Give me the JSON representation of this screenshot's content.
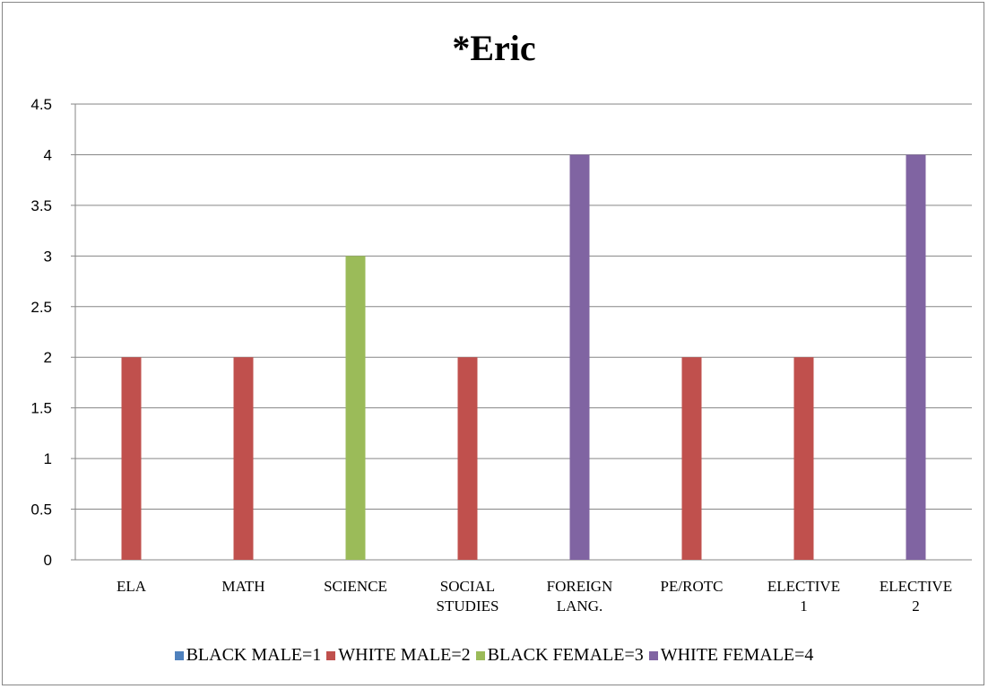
{
  "chart_data": {
    "type": "bar",
    "title": "*Eric",
    "categories": [
      [
        "ELA"
      ],
      [
        "MATH"
      ],
      [
        "SCIENCE"
      ],
      [
        "SOCIAL",
        "STUDIES"
      ],
      [
        "FOREIGN",
        "LANG."
      ],
      [
        "PE/ROTC"
      ],
      [
        "ELECTIVE",
        "1"
      ],
      [
        "ELECTIVE",
        "2"
      ]
    ],
    "series": [
      {
        "name": "BLACK MALE=1",
        "color": "#4F81BD",
        "values": [
          null,
          null,
          null,
          null,
          null,
          null,
          null,
          null
        ]
      },
      {
        "name": "WHITE MALE=2",
        "color": "#C0504D",
        "values": [
          2,
          2,
          null,
          2,
          null,
          2,
          2,
          null
        ]
      },
      {
        "name": "BLACK FEMALE=3",
        "color": "#9BBB59",
        "values": [
          null,
          null,
          3,
          null,
          null,
          null,
          null,
          null
        ]
      },
      {
        "name": "WHITE FEMALE=4",
        "color": "#8064A2",
        "values": [
          null,
          null,
          null,
          null,
          4,
          null,
          null,
          4
        ]
      }
    ],
    "ylim": [
      0,
      4.5
    ],
    "yticks": [
      "0",
      "0.5",
      "1",
      "1.5",
      "2",
      "2.5",
      "3",
      "3.5",
      "4",
      "4.5"
    ],
    "grid": true,
    "legend_position": "bottom"
  }
}
